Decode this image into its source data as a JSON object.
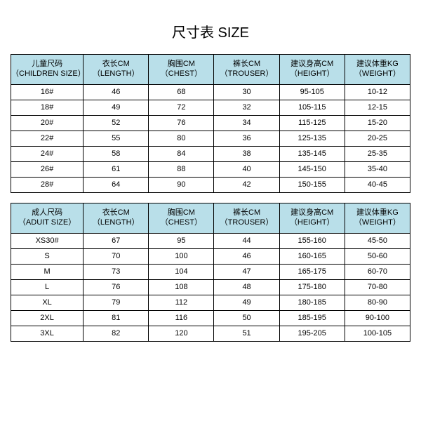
{
  "title": "尺寸表 SIZE",
  "colors": {
    "header_bg": "#b9dfe9",
    "border": "#000000",
    "background": "#ffffff",
    "text": "#000000"
  },
  "children_table": {
    "columns": [
      {
        "cn": "儿童尺码",
        "en": "（CHILDREN SIZE）"
      },
      {
        "cn": "衣长CM",
        "en": "（LENGTH）"
      },
      {
        "cn": "胸围CM",
        "en": "（CHEST）"
      },
      {
        "cn": "裤长CM",
        "en": "（TROUSER）"
      },
      {
        "cn": "建议身高CM",
        "en": "（HEIGHT）"
      },
      {
        "cn": "建议体重KG",
        "en": "（WEIGHT）"
      }
    ],
    "rows": [
      [
        "16#",
        "46",
        "68",
        "30",
        "95-105",
        "10-12"
      ],
      [
        "18#",
        "49",
        "72",
        "32",
        "105-115",
        "12-15"
      ],
      [
        "20#",
        "52",
        "76",
        "34",
        "115-125",
        "15-20"
      ],
      [
        "22#",
        "55",
        "80",
        "36",
        "125-135",
        "20-25"
      ],
      [
        "24#",
        "58",
        "84",
        "38",
        "135-145",
        "25-35"
      ],
      [
        "26#",
        "61",
        "88",
        "40",
        "145-150",
        "35-40"
      ],
      [
        "28#",
        "64",
        "90",
        "42",
        "150-155",
        "40-45"
      ]
    ]
  },
  "adult_table": {
    "columns": [
      {
        "cn": "成人尺码",
        "en": "（ADUIT SIZE）"
      },
      {
        "cn": "衣长CM",
        "en": "（LENGTH）"
      },
      {
        "cn": "胸围CM",
        "en": "（CHEST）"
      },
      {
        "cn": "裤长CM",
        "en": "（TROUSER）"
      },
      {
        "cn": "建议身高CM",
        "en": "（HEIGHT）"
      },
      {
        "cn": "建议体重KG",
        "en": "（WEIGHT）"
      }
    ],
    "rows": [
      [
        "XS30#",
        "67",
        "95",
        "44",
        "155-160",
        "45-50"
      ],
      [
        "S",
        "70",
        "100",
        "46",
        "160-165",
        "50-60"
      ],
      [
        "M",
        "73",
        "104",
        "47",
        "165-175",
        "60-70"
      ],
      [
        "L",
        "76",
        "108",
        "48",
        "175-180",
        "70-80"
      ],
      [
        "XL",
        "79",
        "112",
        "49",
        "180-185",
        "80-90"
      ],
      [
        "2XL",
        "81",
        "116",
        "50",
        "185-195",
        "90-100"
      ],
      [
        "3XL",
        "82",
        "120",
        "51",
        "195-205",
        "100-105"
      ]
    ]
  }
}
